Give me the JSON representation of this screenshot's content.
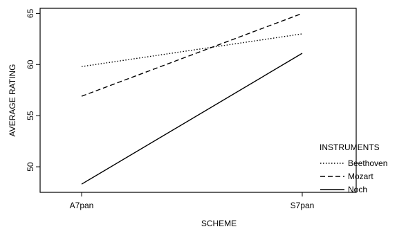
{
  "chart_data": {
    "type": "line",
    "xlabel": "SCHEME",
    "ylabel": "AVERAGE RATING",
    "categories": [
      "A7pan",
      "S7pan"
    ],
    "ylim": [
      47.5,
      65.5
    ],
    "yticks": [
      50,
      55,
      60,
      65
    ],
    "grid": false,
    "legend": {
      "title": "INSTRUMENTS",
      "placement": "bottom-right"
    },
    "series": [
      {
        "name": "Beethoven",
        "values": [
          59.8,
          63.0
        ],
        "style": "dotted",
        "color": "#000000"
      },
      {
        "name": "Mozart",
        "values": [
          56.9,
          65.0
        ],
        "style": "dashed",
        "color": "#000000"
      },
      {
        "name": "Noch",
        "values": [
          48.3,
          61.1
        ],
        "style": "solid",
        "color": "#000000"
      }
    ]
  }
}
